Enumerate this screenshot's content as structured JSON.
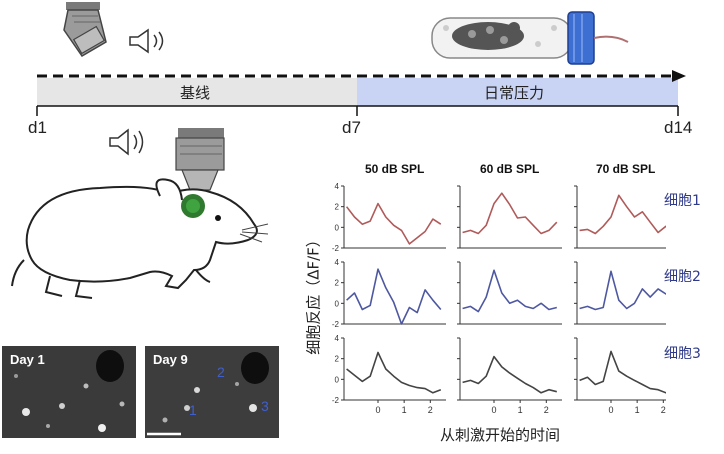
{
  "timeline": {
    "start_label": "d1",
    "mid_label": "d7",
    "end_label": "d14",
    "phase1": "基线",
    "phase2": "日常压力"
  },
  "columns": [
    "50 dB SPL",
    "60 dB SPL",
    "70 dB SPL"
  ],
  "cells": [
    "细胞1",
    "细胞2",
    "细胞3"
  ],
  "y_axis_label": "细胞反应（ΔF/F）",
  "x_axis_label": "从刺激开始的时间",
  "micro_labels": {
    "day1": "Day 1",
    "day9": "Day 9",
    "n1": "1",
    "n2": "2",
    "n3": "3"
  },
  "colors": {
    "cell1": "#b05a5a",
    "cell2": "#4e58a0",
    "cell3": "#444444",
    "baseline_band": "#e6e6e6",
    "stress_band": "#c9d4f5"
  },
  "chart_data": {
    "type": "line",
    "x": [
      -1.2,
      -0.9,
      -0.6,
      -0.3,
      0.0,
      0.3,
      0.6,
      0.9,
      1.2,
      1.5,
      1.8,
      2.1,
      2.4
    ],
    "ylim": [
      -2,
      4
    ],
    "yticks": [
      -2,
      0,
      2,
      4
    ],
    "xticks": [
      0,
      1,
      2
    ],
    "panels": [
      {
        "cell": "细胞1",
        "column": "50 dB SPL",
        "values": [
          2.0,
          1.0,
          0.3,
          0.6,
          2.3,
          1.0,
          0.2,
          -0.3,
          -1.6,
          -1.0,
          -0.4,
          0.8,
          0.3
        ]
      },
      {
        "cell": "细胞1",
        "column": "60 dB SPL",
        "values": [
          -0.5,
          -0.3,
          -0.6,
          0.2,
          2.3,
          3.3,
          2.2,
          0.9,
          1.0,
          0.2,
          -0.6,
          -0.3,
          0.5
        ]
      },
      {
        "cell": "细胞1",
        "column": "70 dB SPL",
        "values": [
          -0.3,
          -0.2,
          -0.6,
          0.1,
          1.0,
          3.1,
          2.0,
          1.0,
          1.5,
          0.5,
          -0.5,
          0.1,
          -0.8
        ]
      },
      {
        "cell": "细胞2",
        "column": "50 dB SPL",
        "values": [
          0.3,
          1.0,
          -0.6,
          -0.2,
          3.3,
          1.5,
          0.1,
          -2.0,
          -0.4,
          -0.9,
          1.3,
          0.3,
          -0.6
        ]
      },
      {
        "cell": "细胞2",
        "column": "60 dB SPL",
        "values": [
          -0.5,
          -0.3,
          -0.8,
          0.6,
          3.2,
          1.0,
          0.0,
          0.3,
          -0.3,
          -0.5,
          0.0,
          -0.6,
          -0.4
        ]
      },
      {
        "cell": "细胞2",
        "column": "70 dB SPL",
        "values": [
          -0.5,
          -0.3,
          -0.6,
          -0.4,
          3.1,
          0.3,
          -0.5,
          0.0,
          1.4,
          0.6,
          1.4,
          0.9,
          1.2
        ]
      },
      {
        "cell": "细胞3",
        "column": "50 dB SPL",
        "values": [
          1.0,
          0.4,
          -0.2,
          0.3,
          2.6,
          1.0,
          0.3,
          -0.3,
          -0.6,
          -0.8,
          -0.9,
          -1.3,
          -1.0
        ]
      },
      {
        "cell": "细胞3",
        "column": "60 dB SPL",
        "values": [
          -0.3,
          -0.1,
          -0.4,
          0.3,
          2.2,
          1.2,
          0.6,
          0.1,
          -0.4,
          -0.8,
          -1.3,
          -1.0,
          -1.2
        ]
      },
      {
        "cell": "细胞3",
        "column": "70 dB SPL",
        "values": [
          -0.1,
          0.2,
          -0.5,
          -0.2,
          2.7,
          0.8,
          0.3,
          -0.1,
          -0.5,
          -0.9,
          -1.0,
          -1.3,
          -1.5
        ]
      }
    ]
  }
}
